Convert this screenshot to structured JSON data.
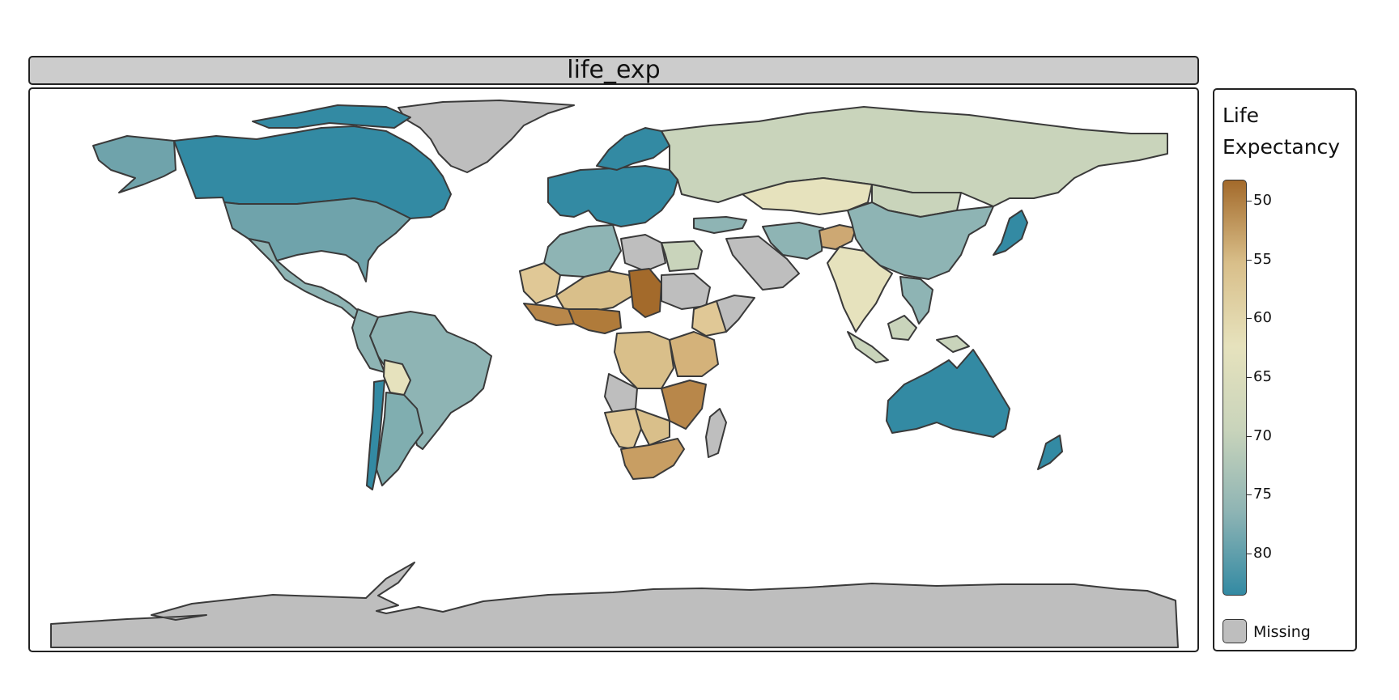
{
  "panel_title": "life_exp",
  "legend": {
    "title_line1": "Life",
    "title_line2": "Expectancy",
    "ticks": [
      "50",
      "55",
      "60",
      "65",
      "70",
      "75",
      "80"
    ],
    "tick_values": [
      50,
      55,
      60,
      65,
      70,
      75,
      80
    ],
    "range": [
      48.2,
      83.6
    ],
    "missing_label": "Missing"
  },
  "colors": {
    "palette_low": "#a36a2b",
    "palette_mid_low": "#d9bf8a",
    "palette_mid": "#e6e2bd",
    "palette_mid_high": "#c9d4bb",
    "palette_high_mid": "#8eb4b4",
    "palette_high": "#338aa3",
    "missing": "#bebebe",
    "border": "#3a3a3a"
  },
  "map": {
    "variable": "life_exp",
    "countries": [
      {
        "name": "Canada",
        "value": 82
      },
      {
        "name": "United States",
        "value": 79
      },
      {
        "name": "Mexico",
        "value": 77
      },
      {
        "name": "Greenland",
        "value": null
      },
      {
        "name": "Brazil",
        "value": 75
      },
      {
        "name": "Argentina",
        "value": 76
      },
      {
        "name": "Chile",
        "value": 80
      },
      {
        "name": "Bolivia",
        "value": 68
      },
      {
        "name": "Russia",
        "value": 71
      },
      {
        "name": "China",
        "value": 76
      },
      {
        "name": "India",
        "value": 68
      },
      {
        "name": "Australia",
        "value": 82
      },
      {
        "name": "Algeria",
        "value": 75
      },
      {
        "name": "Libya",
        "value": null
      },
      {
        "name": "Egypt",
        "value": 71
      },
      {
        "name": "Chad",
        "value": 52
      },
      {
        "name": "Nigeria",
        "value": 53
      },
      {
        "name": "Sudan",
        "value": null
      },
      {
        "name": "Ethiopia",
        "value": 64
      },
      {
        "name": "DR Congo",
        "value": 59
      },
      {
        "name": "South Africa",
        "value": 57
      },
      {
        "name": "Namibia",
        "value": 64
      },
      {
        "name": "Madagascar",
        "value": null
      },
      {
        "name": "Saudi Arabia",
        "value": null
      },
      {
        "name": "Afghanistan",
        "value": 60
      },
      {
        "name": "Japan",
        "value": 83
      },
      {
        "name": "Western Europe",
        "value": 82
      },
      {
        "name": "Antarctica",
        "value": null
      }
    ]
  }
}
